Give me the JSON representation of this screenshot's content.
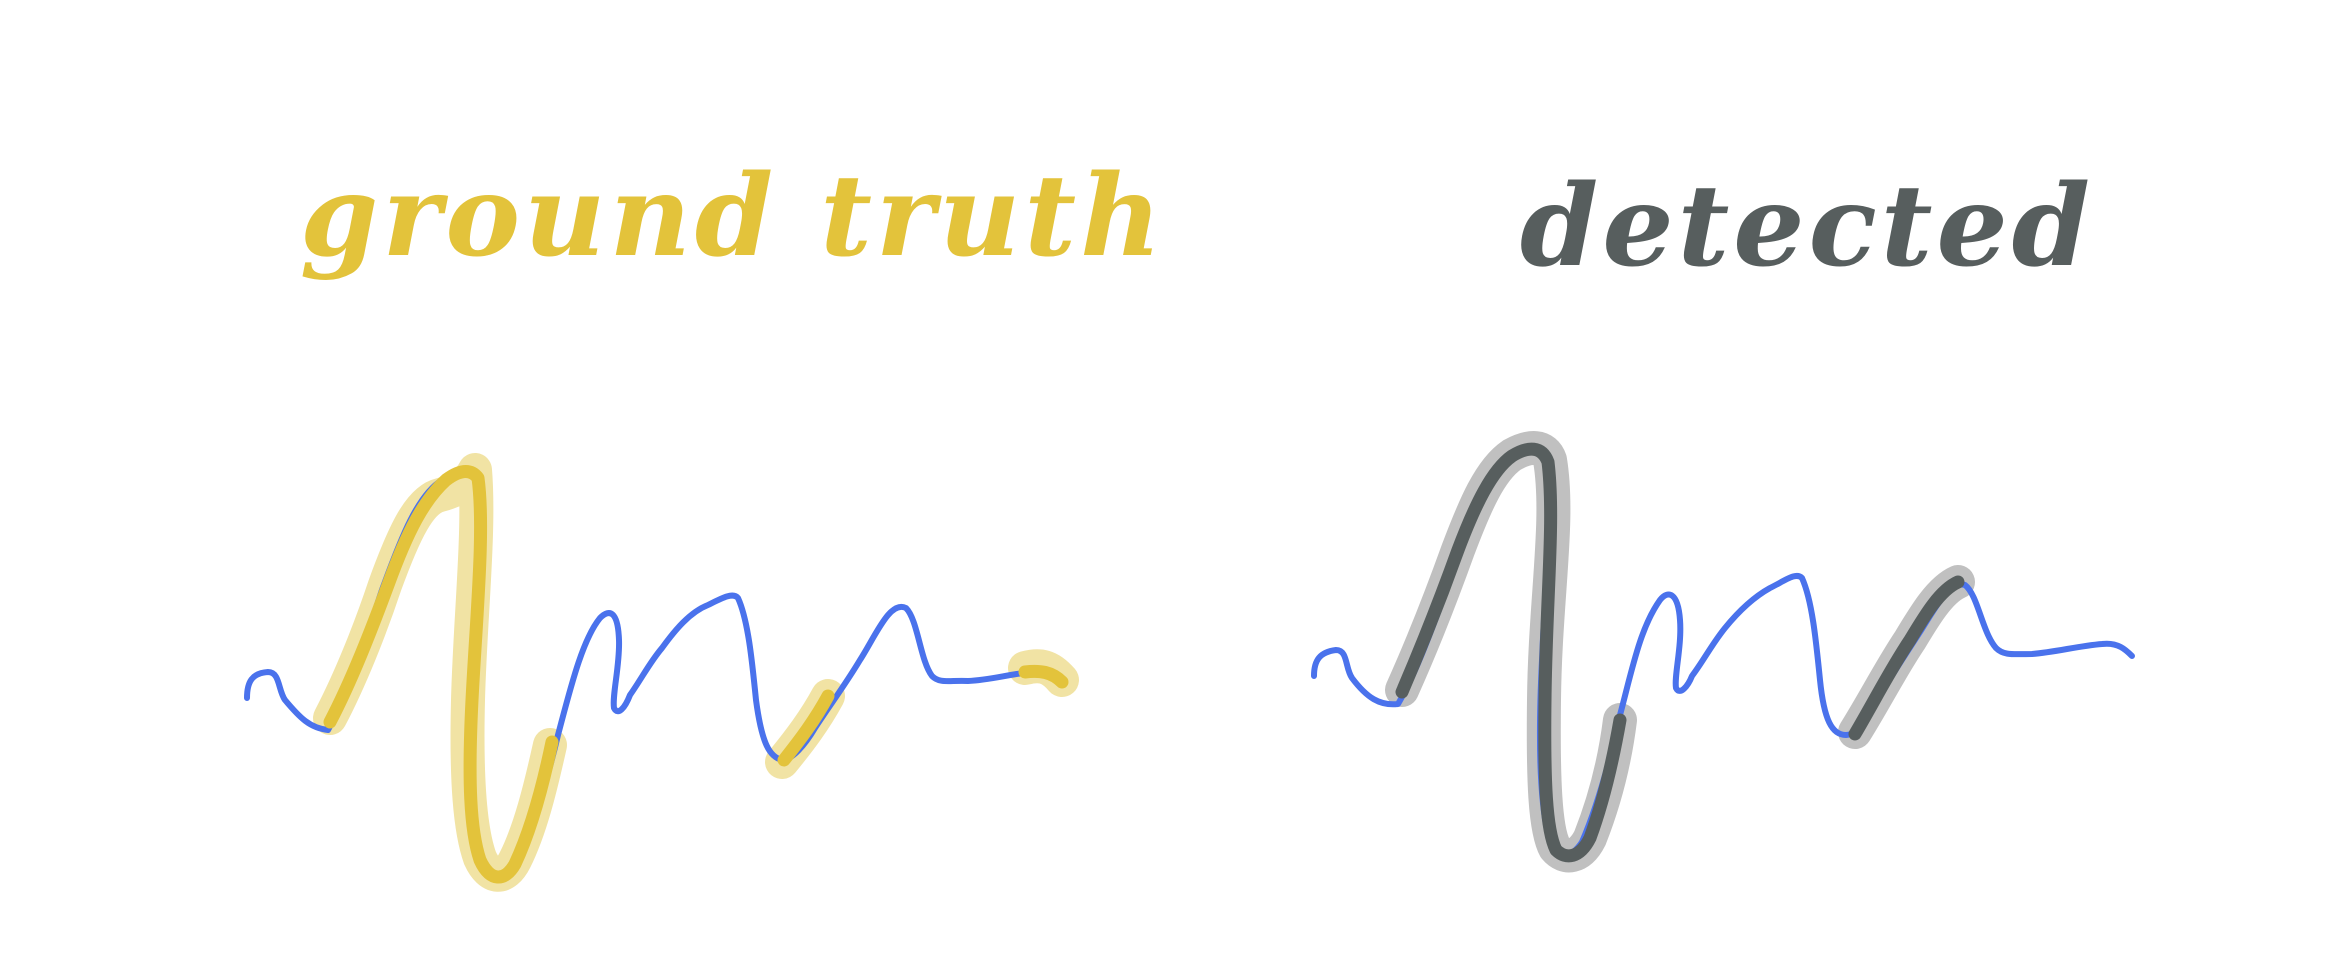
{
  "panels": {
    "ground_truth": {
      "title": "ground truth"
    },
    "detected": {
      "title": "detected"
    }
  },
  "colors": {
    "signal": "#4a72ec",
    "ground_truth_core": "#e3c33b",
    "ground_truth_halo": "#f1e3a4",
    "detected_core": "#575e5e",
    "detected_halo": "#c0c0c0",
    "ground_truth_title": "#e3c33b",
    "detected_title": "#575e5e"
  }
}
